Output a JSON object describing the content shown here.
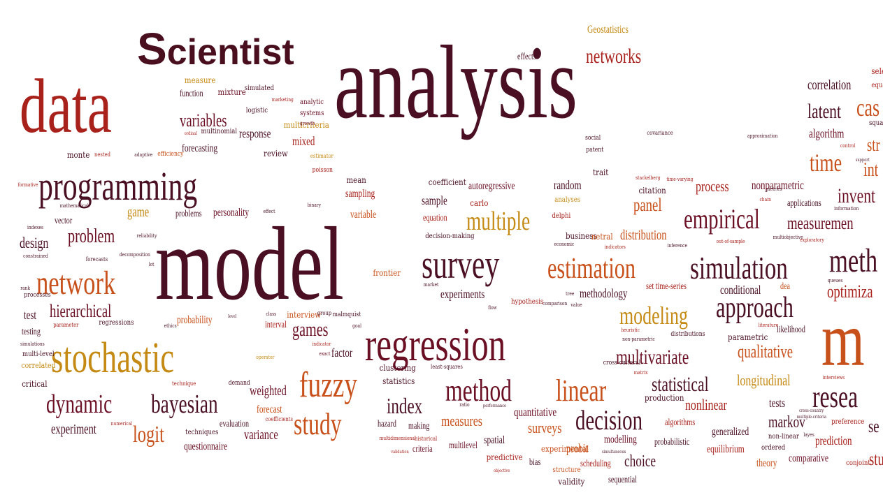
{
  "title": {
    "first_letter": "S",
    "rest": "cientist"
  },
  "palette": {
    "plum": "#4a0f23",
    "maroon": "#6b1024",
    "red": "#a8211b",
    "orange": "#c8501a",
    "gold": "#c58a14",
    "brown": "#8a3a10"
  },
  "words": [
    {
      "text": "analysis"
    },
    {
      "text": "model"
    },
    {
      "text": "data"
    },
    {
      "text": "programming"
    },
    {
      "text": "regression"
    },
    {
      "text": "stochastic"
    },
    {
      "text": "survey"
    },
    {
      "text": "network"
    },
    {
      "text": "fuzzy"
    },
    {
      "text": "simulation"
    },
    {
      "text": "method"
    },
    {
      "text": "linear"
    },
    {
      "text": "estimation"
    },
    {
      "text": "approach"
    },
    {
      "text": "dynamic"
    },
    {
      "text": "bayesian"
    },
    {
      "text": "study"
    },
    {
      "text": "modeling"
    },
    {
      "text": "multiple"
    },
    {
      "text": "empirical"
    },
    {
      "text": "decision"
    },
    {
      "text": "multivariate"
    },
    {
      "text": "statistical"
    },
    {
      "text": "qualitative"
    },
    {
      "text": "hierarchical"
    },
    {
      "text": "networks"
    },
    {
      "text": "process"
    },
    {
      "text": "panel"
    },
    {
      "text": "latent"
    },
    {
      "text": "time"
    },
    {
      "text": "index"
    },
    {
      "text": "games"
    },
    {
      "text": "problem"
    },
    {
      "text": "variables"
    },
    {
      "text": "logit"
    },
    {
      "text": "markov"
    },
    {
      "text": "longitudinal"
    },
    {
      "text": "measures"
    },
    {
      "text": "nonlinear"
    },
    {
      "text": "design"
    },
    {
      "text": "game"
    },
    {
      "text": "weighted"
    },
    {
      "text": "distribution"
    },
    {
      "text": "choice"
    },
    {
      "text": "forecasting"
    },
    {
      "text": "mixed"
    },
    {
      "text": "response"
    },
    {
      "text": "correlation"
    },
    {
      "text": "sampling"
    },
    {
      "text": "experiments"
    },
    {
      "text": "methodology"
    },
    {
      "text": "conditional"
    },
    {
      "text": "surveys"
    },
    {
      "text": "quantitative"
    },
    {
      "text": "probability"
    },
    {
      "text": "factor"
    },
    {
      "text": "test"
    },
    {
      "text": "testing"
    },
    {
      "text": "experiment"
    },
    {
      "text": "variance"
    },
    {
      "text": "questionnaire"
    },
    {
      "text": "evaluation"
    },
    {
      "text": "forecast"
    },
    {
      "text": "critical"
    },
    {
      "text": "tests"
    },
    {
      "text": "generalized"
    },
    {
      "text": "prediction"
    },
    {
      "text": "equilibrium"
    },
    {
      "text": "probit"
    },
    {
      "text": "modelling"
    },
    {
      "text": "algorithms"
    },
    {
      "text": "probabilistic"
    },
    {
      "text": "spatial"
    },
    {
      "text": "multilevel"
    },
    {
      "text": "theory"
    },
    {
      "text": "comparative"
    },
    {
      "text": "sequential"
    },
    {
      "text": "validity"
    },
    {
      "text": "bias"
    },
    {
      "text": "scheduling"
    },
    {
      "text": "structure"
    },
    {
      "text": "hazard"
    },
    {
      "text": "making"
    },
    {
      "text": "criteria"
    },
    {
      "text": "predictive"
    },
    {
      "text": "experimental"
    },
    {
      "text": "autoregressive"
    },
    {
      "text": "random"
    },
    {
      "text": "sample"
    },
    {
      "text": "equation"
    },
    {
      "text": "coefficient"
    },
    {
      "text": "variable"
    },
    {
      "text": "mean"
    },
    {
      "text": "nonparametric"
    },
    {
      "text": "citation"
    },
    {
      "text": "applications"
    },
    {
      "text": "algorithm"
    },
    {
      "text": "effects"
    },
    {
      "text": "function"
    },
    {
      "text": "mixture"
    },
    {
      "text": "personality"
    },
    {
      "text": "problems"
    },
    {
      "text": "vector"
    },
    {
      "text": "monte"
    },
    {
      "text": "review"
    },
    {
      "text": "carlo"
    },
    {
      "text": "trait"
    },
    {
      "text": "frontier"
    },
    {
      "text": "interval"
    },
    {
      "text": "interview"
    },
    {
      "text": "clustering"
    },
    {
      "text": "statistics"
    },
    {
      "text": "dea"
    },
    {
      "text": "likelihood"
    },
    {
      "text": "parametric"
    },
    {
      "text": "set time-series"
    },
    {
      "text": "production"
    },
    {
      "text": "business"
    },
    {
      "text": "netral"
    },
    {
      "text": "decision-making"
    },
    {
      "text": "social"
    },
    {
      "text": "patent"
    },
    {
      "text": "covariance"
    },
    {
      "text": "approximation"
    },
    {
      "text": "Geostatistics"
    },
    {
      "text": "measure"
    },
    {
      "text": "simulated"
    },
    {
      "text": "analytic"
    },
    {
      "text": "logistic"
    },
    {
      "text": "systems"
    },
    {
      "text": "multinomial"
    },
    {
      "text": "multicriteria"
    },
    {
      "text": "growth"
    },
    {
      "text": "efficiency"
    },
    {
      "text": "estimator"
    },
    {
      "text": "poisson"
    },
    {
      "text": "nested"
    },
    {
      "text": "adaptive"
    },
    {
      "text": "forecasts"
    },
    {
      "text": "decomposition"
    },
    {
      "text": "reliability"
    },
    {
      "text": "lot"
    },
    {
      "text": "indexes"
    },
    {
      "text": "constrained"
    },
    {
      "text": "rank"
    },
    {
      "text": "processes"
    },
    {
      "text": "regressions"
    },
    {
      "text": "parameter"
    },
    {
      "text": "simulations"
    },
    {
      "text": "multi-level"
    },
    {
      "text": "correlated"
    },
    {
      "text": "technique"
    },
    {
      "text": "techniques"
    },
    {
      "text": "numerical"
    },
    {
      "text": "coefficients"
    },
    {
      "text": "operator"
    },
    {
      "text": "demand"
    },
    {
      "text": "ethics"
    },
    {
      "text": "class"
    },
    {
      "text": "group"
    },
    {
      "text": "malmquist"
    },
    {
      "text": "goal"
    },
    {
      "text": "indicator"
    },
    {
      "text": "exact"
    },
    {
      "text": "least-squares"
    },
    {
      "text": "ratio"
    },
    {
      "text": "performance"
    },
    {
      "text": "multidimensional"
    },
    {
      "text": "historical"
    },
    {
      "text": "validation"
    },
    {
      "text": "objective"
    },
    {
      "text": "hypothesis"
    },
    {
      "text": "flow"
    },
    {
      "text": "comparison"
    },
    {
      "text": "value"
    },
    {
      "text": "market"
    },
    {
      "text": "analyses"
    },
    {
      "text": "delphi"
    },
    {
      "text": "economic"
    },
    {
      "text": "indicators"
    },
    {
      "text": "inference"
    },
    {
      "text": "out-of-sample"
    },
    {
      "text": "multiobjective"
    },
    {
      "text": "exploratory"
    },
    {
      "text": "chain"
    },
    {
      "text": "metrics"
    },
    {
      "text": "information"
    },
    {
      "text": "queues"
    },
    {
      "text": "tree"
    },
    {
      "text": "heuristic"
    },
    {
      "text": "non-parametric"
    },
    {
      "text": "distributions"
    },
    {
      "text": "cross-cultural"
    },
    {
      "text": "matrix"
    },
    {
      "text": "literature"
    },
    {
      "text": "interviews"
    },
    {
      "text": "ordered"
    },
    {
      "text": "non-linear"
    },
    {
      "text": "preference"
    },
    {
      "text": "conjoint"
    },
    {
      "text": "layes"
    },
    {
      "text": "cross-country"
    },
    {
      "text": "multiple-criteria"
    },
    {
      "text": "stackelberg"
    },
    {
      "text": "time-varying"
    },
    {
      "text": "control"
    },
    {
      "text": "support"
    },
    {
      "text": "binary"
    },
    {
      "text": "cas"
    },
    {
      "text": "str"
    },
    {
      "text": "int"
    },
    {
      "text": "invent"
    },
    {
      "text": "measuremen"
    },
    {
      "text": "meth"
    },
    {
      "text": "optimiza"
    },
    {
      "text": "m"
    },
    {
      "text": "resea"
    },
    {
      "text": "se"
    },
    {
      "text": "stu"
    },
    {
      "text": "selec"
    },
    {
      "text": "equati"
    },
    {
      "text": "squares"
    },
    {
      "text": "formative"
    },
    {
      "text": "mathematical"
    },
    {
      "text": "marketing"
    },
    {
      "text": "effect"
    },
    {
      "text": "ordinal"
    },
    {
      "text": "level"
    },
    {
      "text": "simultaneous"
    }
  ]
}
